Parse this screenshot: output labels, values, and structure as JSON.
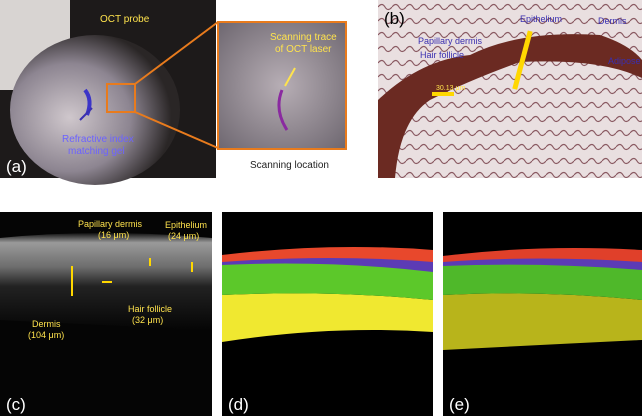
{
  "panels": {
    "a": {
      "label": "(a)",
      "probe": "OCT probe",
      "trace": [
        "Scanning trace",
        "of OCT laser"
      ],
      "gel": [
        "Refractive index",
        "matching gel"
      ],
      "caption": "Scanning location"
    },
    "b": {
      "label": "(b)",
      "epithelium": "Epithelium",
      "dermis": "Dermis",
      "papillary": "Papillary dermis",
      "hair": "Hair follicle",
      "adipose": "Adipose",
      "scale": "30.13 μm"
    },
    "c": {
      "label": "(c)",
      "papillary": [
        "Papillary dermis",
        "(16 μm)"
      ],
      "epithelium": [
        "Epithelium",
        "(24 μm)"
      ],
      "dermis": [
        "Dermis",
        "(104 μm)"
      ],
      "hair": [
        "Hair follicle",
        "(32 μm)"
      ]
    },
    "d": {
      "label": "(d)"
    },
    "e": {
      "label": "(e)"
    }
  }
}
